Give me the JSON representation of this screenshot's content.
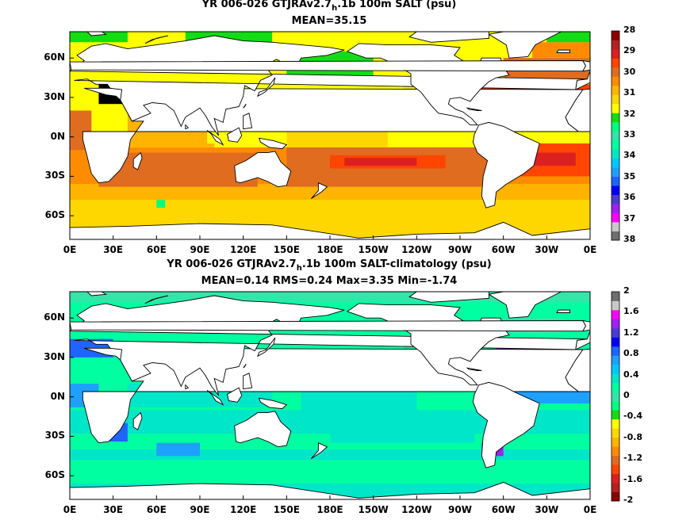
{
  "chart_data": [
    {
      "type": "heatmap",
      "title_pre": "YR 006-026 GTJRAv2.7",
      "title_sub": "h",
      "title_post": ".1b 100m SALT (psu)",
      "subtitle": "MEAN=35.15",
      "x_ticks": [
        "0E",
        "30E",
        "60E",
        "90E",
        "120E",
        "150E",
        "180E",
        "150W",
        "120W",
        "90W",
        "60W",
        "30W",
        "0E"
      ],
      "y_ticks": [
        "60N",
        "30N",
        "0N",
        "30S",
        "60S"
      ],
      "xlim": [
        0,
        360
      ],
      "ylim": [
        -78,
        80
      ],
      "colorbar": {
        "ticks": [
          "28",
          "29",
          "30",
          "31",
          "32",
          "33",
          "34",
          "35",
          "36",
          "37",
          "38"
        ],
        "colors": [
          "#6e6e6e",
          "#c8c8c8",
          "#ff00ff",
          "#a020f0",
          "#4b3bd1",
          "#0000ff",
          "#1e64ff",
          "#1ea0ff",
          "#00c8ff",
          "#00e6c8",
          "#00ffa0",
          "#32e6aa",
          "#00ff80",
          "#14dc14",
          "#ffff00",
          "#ffd700",
          "#ffb400",
          "#ff8c00",
          "#e06c20",
          "#ff4500",
          "#dc2020",
          "#b22222",
          "#8b0000"
        ]
      }
    },
    {
      "type": "heatmap",
      "title_pre": "YR 006-026 GTJRAv2.7",
      "title_sub": "h",
      "title_post": ".1b 100m SALT-climatology (psu)",
      "subtitle": "MEAN=0.14   RMS=0.24   Max=3.35   Min=-1.74",
      "x_ticks": [
        "0E",
        "30E",
        "60E",
        "90E",
        "120E",
        "150E",
        "180E",
        "150W",
        "120W",
        "90W",
        "60W",
        "30W",
        "0E"
      ],
      "y_ticks": [
        "60N",
        "30N",
        "0N",
        "30S",
        "60S"
      ],
      "xlim": [
        0,
        360
      ],
      "ylim": [
        -78,
        80
      ],
      "colorbar": {
        "ticks": [
          "2",
          "1.6",
          "1.2",
          "0.8",
          "0.4",
          "0",
          "-0.4",
          "-0.8",
          "-1.2",
          "-1.6",
          "-2"
        ],
        "colors": [
          "#8b0000",
          "#b22222",
          "#dc2020",
          "#ff4500",
          "#e06c20",
          "#ff8c00",
          "#ffb400",
          "#ffd700",
          "#ffff00",
          "#14dc14",
          "#00ff80",
          "#32e6aa",
          "#00ffa0",
          "#00e6c8",
          "#00c8ff",
          "#1ea0ff",
          "#1e64ff",
          "#0000ff",
          "#4b3bd1",
          "#a020f0",
          "#ff00ff",
          "#c8c8c8",
          "#6e6e6e"
        ]
      }
    }
  ],
  "palette": {
    "land": "#ffffff",
    "outline": "#000000"
  }
}
